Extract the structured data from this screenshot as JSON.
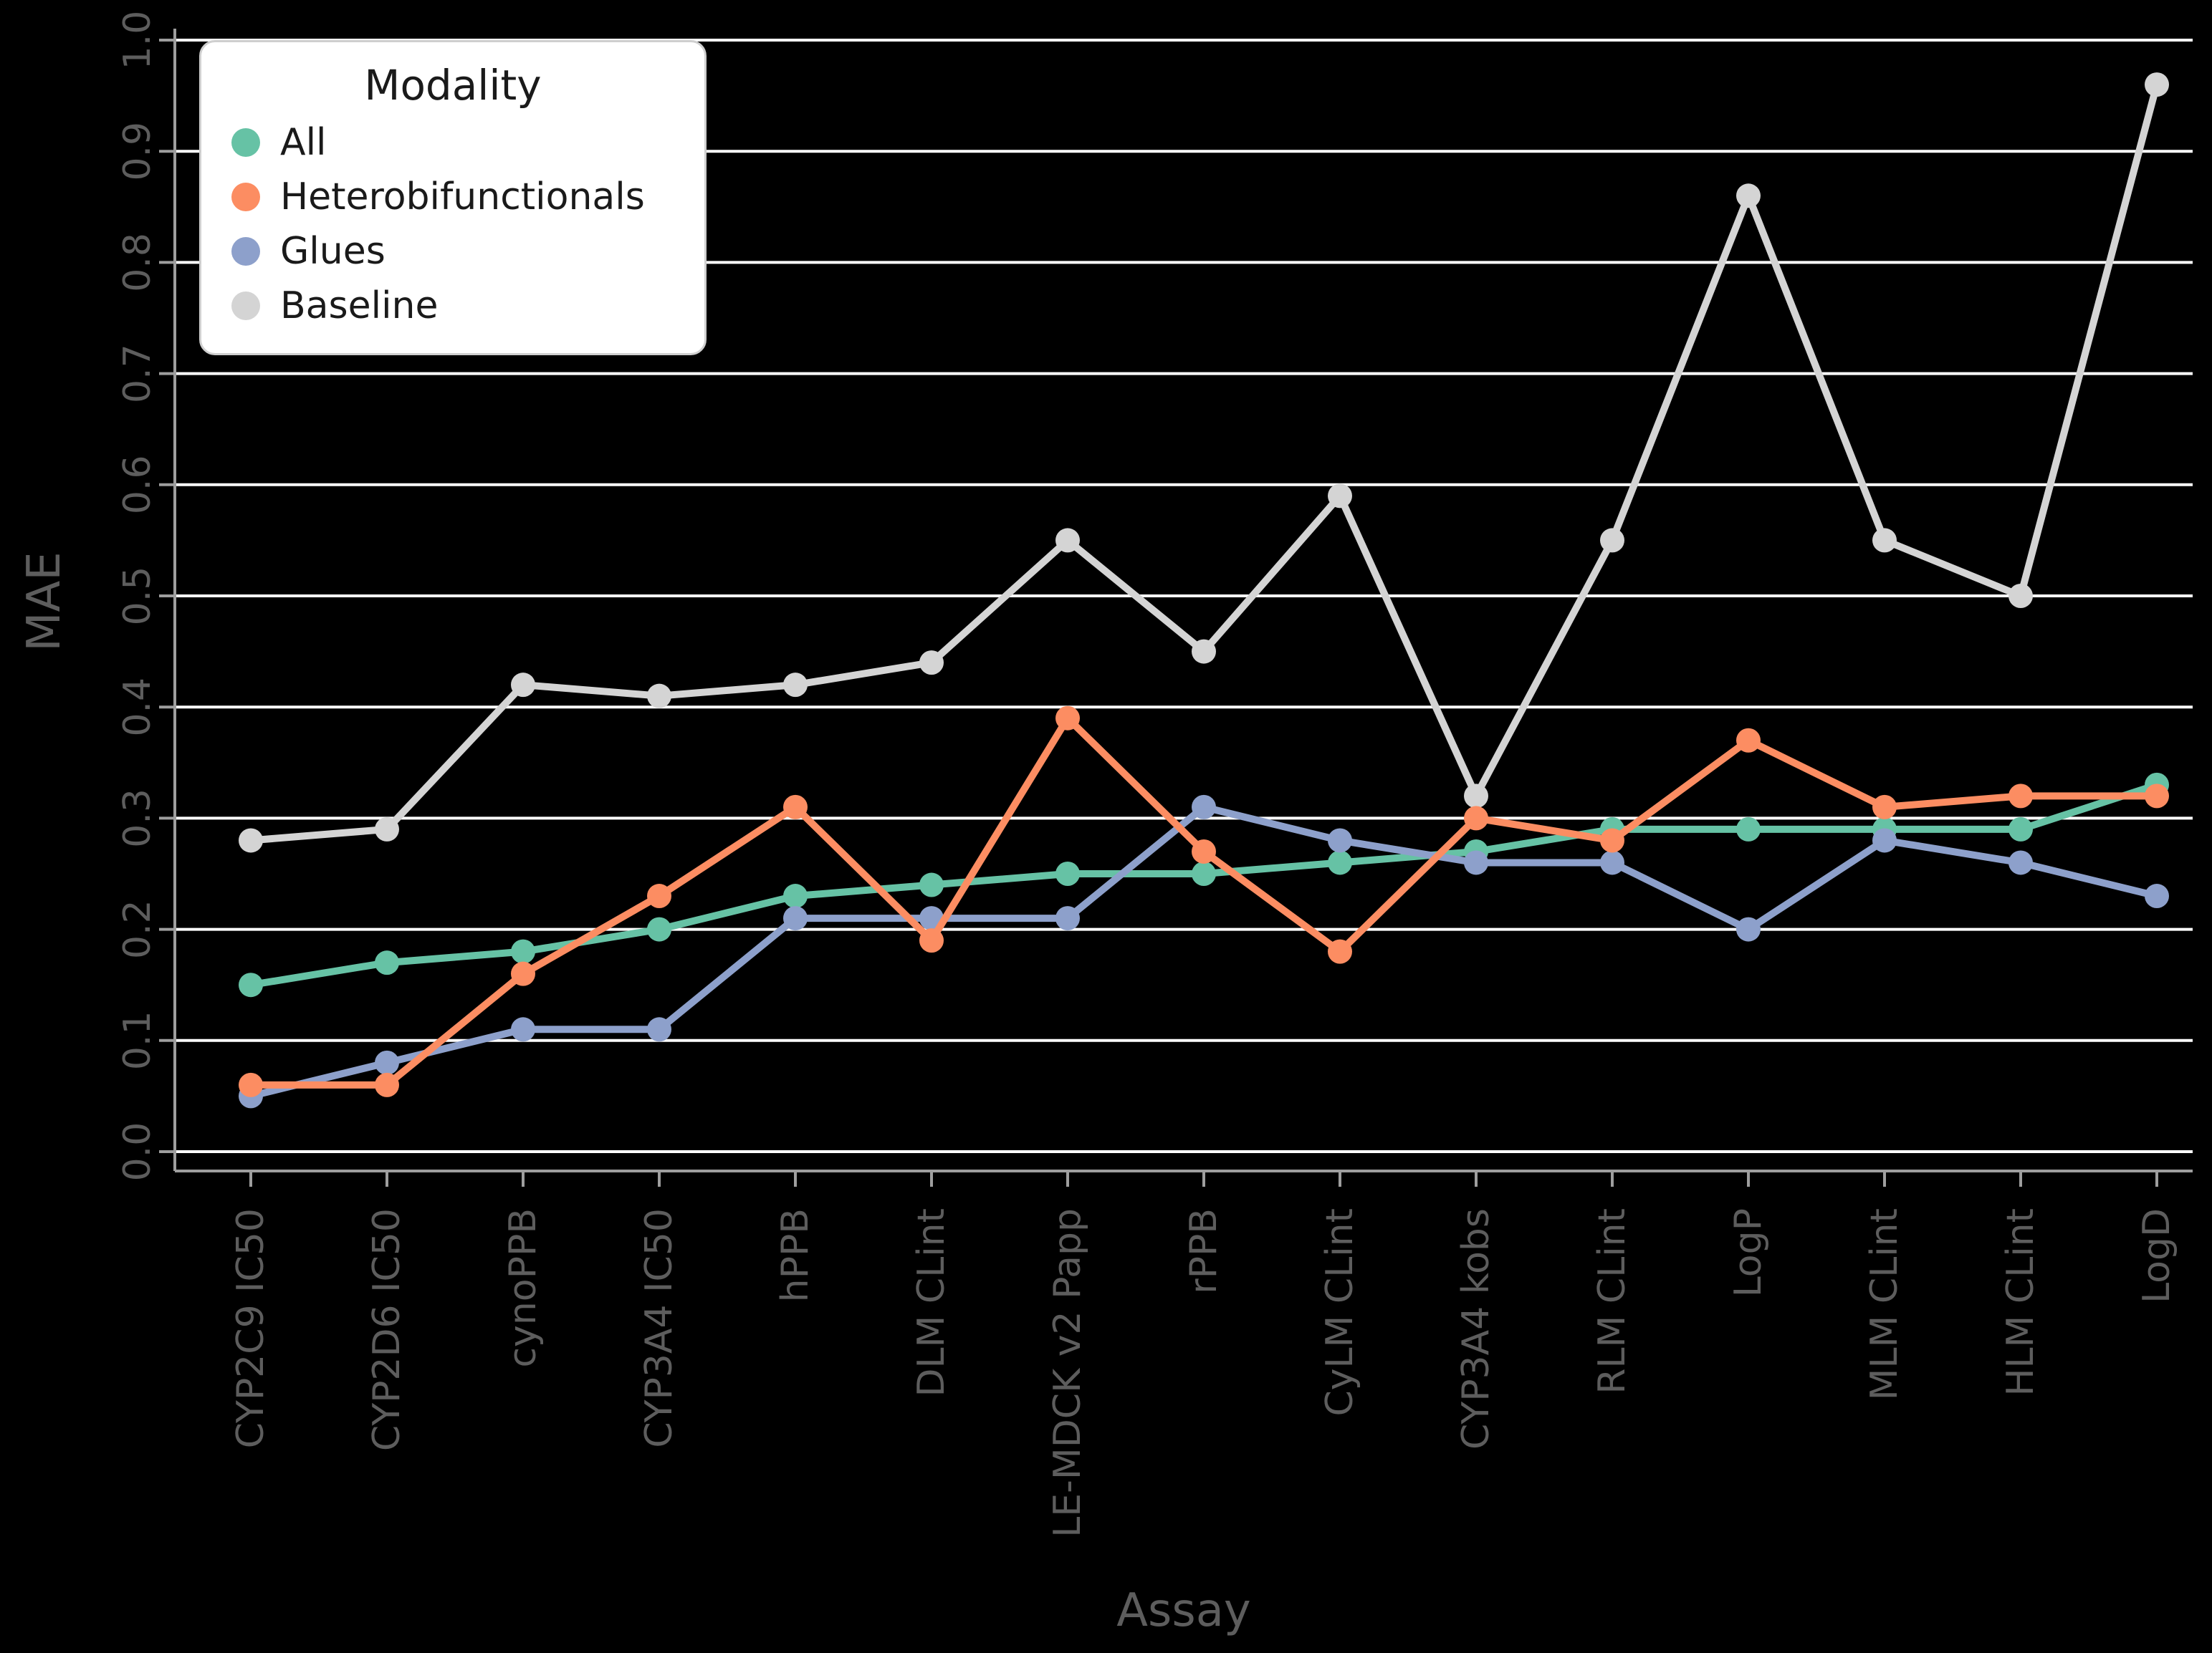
{
  "chart_data": {
    "type": "line",
    "title": "",
    "xlabel": "Assay",
    "ylabel": "MAE",
    "legend_title": "Modality",
    "legend_position": "upper left",
    "background": "#000000",
    "grid": true,
    "gridline_color": "#ffffff",
    "axis_color": "#9e9e9e",
    "tick_label_color": "#5d5d5d",
    "ylim": [
      0.0,
      1.0
    ],
    "yticks": [
      0.0,
      0.1,
      0.2,
      0.3,
      0.4,
      0.5,
      0.6,
      0.7,
      0.8,
      0.9,
      1.0
    ],
    "ytick_labels": [
      "0.0",
      "0.1",
      "0.2",
      "0.3",
      "0.4",
      "0.5",
      "0.6",
      "0.7",
      "0.8",
      "0.9",
      "1.0"
    ],
    "categories": [
      "CYP2C9 IC50",
      "CYP2D6 IC50",
      "cynoPPB",
      "CYP3A4 IC50",
      "hPPB",
      "DLM CLint",
      "LE-MDCK v2 Papp",
      "rPPB",
      "CyLM CLint",
      "CYP3A4 kobs",
      "RLM CLint",
      "LogP",
      "MLM CLint",
      "HLM CLint",
      "LogD"
    ],
    "series": [
      {
        "name": "All",
        "color": "#66c2a5",
        "values": [
          0.15,
          0.17,
          0.18,
          0.2,
          0.23,
          0.24,
          0.25,
          0.25,
          0.26,
          0.27,
          0.29,
          0.29,
          0.29,
          0.29,
          0.33
        ]
      },
      {
        "name": "Heterobifunctionals",
        "color": "#fc8d62",
        "values": [
          0.06,
          0.06,
          0.16,
          0.23,
          0.31,
          0.19,
          0.39,
          0.27,
          0.18,
          0.3,
          0.28,
          0.37,
          0.31,
          0.32,
          0.32
        ]
      },
      {
        "name": "Glues",
        "color": "#8da0cb",
        "values": [
          0.05,
          0.08,
          0.11,
          0.11,
          0.21,
          0.21,
          0.21,
          0.31,
          0.28,
          0.26,
          0.26,
          0.2,
          0.28,
          0.26,
          0.23
        ]
      },
      {
        "name": "Baseline",
        "color": "#d4d4d4",
        "values": [
          0.28,
          0.29,
          0.42,
          0.41,
          0.42,
          0.44,
          0.55,
          0.45,
          0.59,
          0.32,
          0.55,
          0.86,
          0.55,
          0.5,
          0.96
        ]
      }
    ]
  }
}
